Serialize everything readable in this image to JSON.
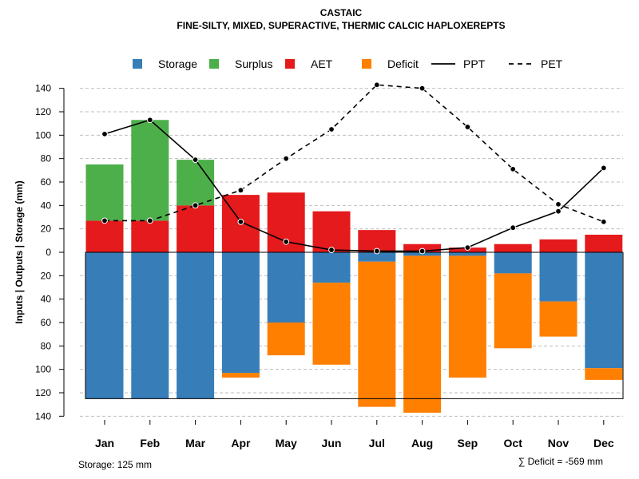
{
  "chart_data": {
    "type": "bar",
    "title": "CASTAIC",
    "subtitle": "FINE-SILTY, MIXED, SUPERACTIVE, THERMIC CALCIC HAPLOXEREPTS",
    "ylabel": "Inputs | Outputs | Storage    (mm)",
    "ylim": [
      -140,
      150
    ],
    "yticks_pos": [
      0,
      20,
      40,
      60,
      80,
      100,
      120,
      140
    ],
    "yticks_neg": [
      20,
      40,
      60,
      80,
      100,
      120,
      140
    ],
    "categories": [
      "Jan",
      "Feb",
      "Mar",
      "Apr",
      "May",
      "Jun",
      "Jul",
      "Aug",
      "Sep",
      "Oct",
      "Nov",
      "Dec"
    ],
    "legend": [
      "Storage",
      "Surplus",
      "AET",
      "Deficit",
      "PPT",
      "PET"
    ],
    "colors": {
      "storage": "#377EB8",
      "surplus": "#4DAF4A",
      "aet": "#E41A1C",
      "deficit": "#FF7F00",
      "grid": "#BEBEBE"
    },
    "series": [
      {
        "name": "AET",
        "values": [
          27,
          27,
          40,
          49,
          51,
          35,
          19,
          7,
          4,
          7,
          11,
          15
        ]
      },
      {
        "name": "Surplus",
        "values": [
          48,
          86,
          39,
          0,
          0,
          0,
          0,
          0,
          0,
          0,
          0,
          0
        ]
      },
      {
        "name": "Storage",
        "values": [
          125,
          125,
          125,
          103,
          60,
          26,
          8,
          3,
          3,
          18,
          42,
          99
        ]
      },
      {
        "name": "Deficit",
        "values": [
          0,
          0,
          0,
          4,
          28,
          70,
          124,
          134,
          104,
          64,
          30,
          10
        ]
      },
      {
        "name": "PPT",
        "values": [
          101,
          113,
          79,
          26,
          9,
          2,
          1,
          1,
          4,
          21,
          35,
          72
        ]
      },
      {
        "name": "PET",
        "values": [
          27,
          27,
          40,
          53,
          80,
          105,
          143,
          140,
          107,
          71,
          41,
          26
        ]
      }
    ],
    "storage_capacity": 125
  },
  "footer": {
    "storage_label": "Storage: 125 mm",
    "deficit_label": "∑ Deficit = -569 mm"
  }
}
